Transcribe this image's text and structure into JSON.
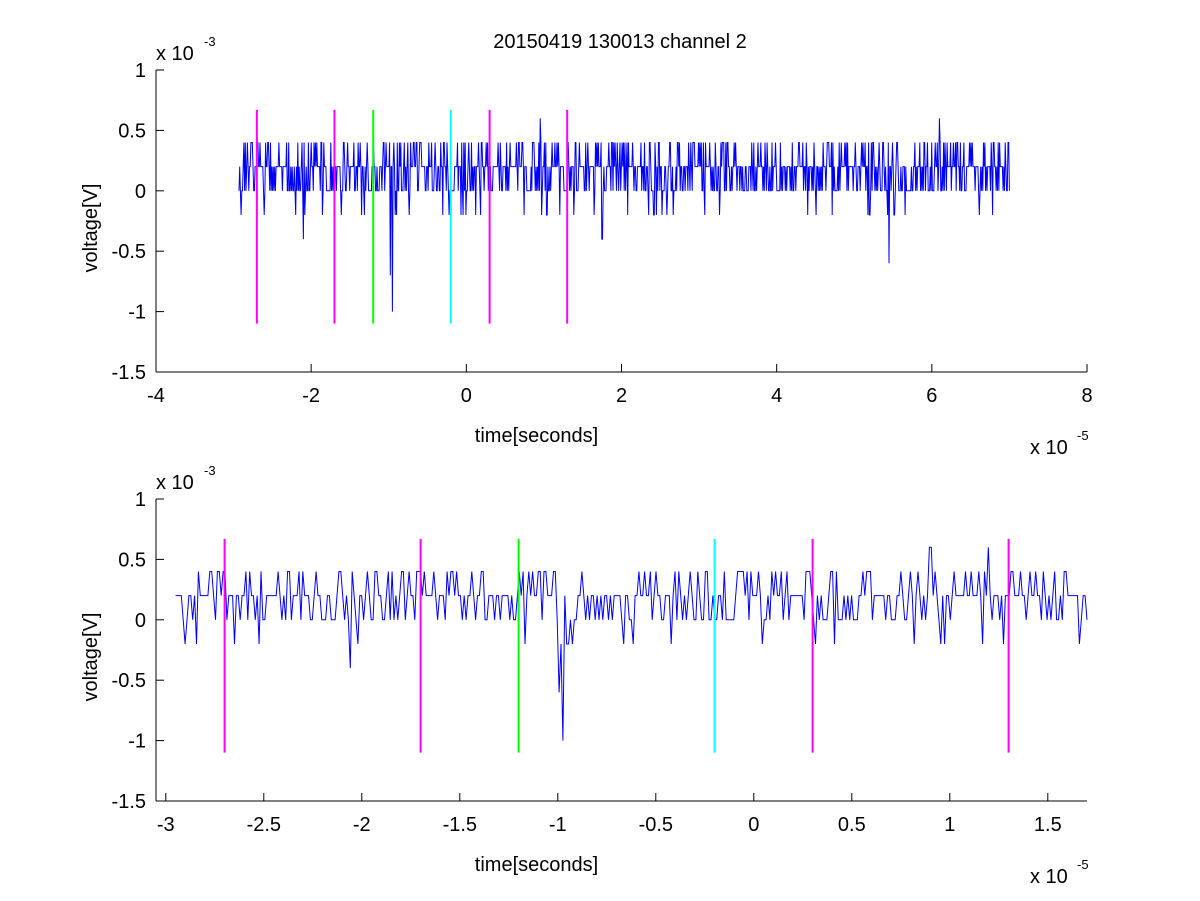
{
  "title": "20150419 130013 channel 2",
  "chart_data": [
    {
      "type": "line",
      "title": "20150419 130013 channel 2",
      "xlabel": "time[seconds]",
      "ylabel": "voltage[V]",
      "x_exponent_label": "x 10",
      "x_exponent": "-5",
      "y_exponent_label": "x 10",
      "y_exponent": "-3",
      "xlim": [
        -4,
        8
      ],
      "ylim": [
        -1.5,
        1
      ],
      "xticks": [
        "-4",
        "-2",
        "0",
        "2",
        "4",
        "6",
        "8"
      ],
      "yticks": [
        "-1.5",
        "-1",
        "-0.5",
        "0",
        "0.5",
        "1"
      ],
      "x_unit_scale": "1e-5",
      "y_unit_scale": "1e-3",
      "grid": false,
      "series": [
        {
          "color": "#0000ff",
          "x_range": [
            -2.93,
            7.0
          ],
          "baseline": 0.2,
          "noise_levels": [
            0,
            0.2,
            0.4
          ],
          "features": [
            {
              "x": -2.1,
              "y": -0.4
            },
            {
              "x": -0.95,
              "y": -1.0
            },
            {
              "x": -0.98,
              "y": -0.7
            },
            {
              "x": 0.95,
              "y": 0.6
            },
            {
              "x": 1.75,
              "y": -0.4
            },
            {
              "x": 5.45,
              "y": -0.6
            },
            {
              "x": 6.1,
              "y": 0.6
            }
          ]
        }
      ],
      "markers": [
        {
          "x": -2.7,
          "color": "#ff00ff",
          "y_range": [
            -1.1,
            0.67
          ]
        },
        {
          "x": -1.7,
          "color": "#ff00ff",
          "y_range": [
            -1.1,
            0.67
          ]
        },
        {
          "x": -1.2,
          "color": "#00ff00",
          "y_range": [
            -1.1,
            0.67
          ]
        },
        {
          "x": -0.2,
          "color": "#00ffff",
          "y_range": [
            -1.1,
            0.67
          ]
        },
        {
          "x": 0.3,
          "color": "#ff00ff",
          "y_range": [
            -1.1,
            0.67
          ]
        },
        {
          "x": 1.3,
          "color": "#ff00ff",
          "y_range": [
            -1.1,
            0.67
          ]
        }
      ]
    },
    {
      "type": "line",
      "xlabel": "time[seconds]",
      "ylabel": "voltage[V]",
      "x_exponent_label": "x 10",
      "x_exponent": "-5",
      "y_exponent_label": "x 10",
      "y_exponent": "-3",
      "xlim": [
        -3.05,
        1.7
      ],
      "ylim": [
        -1.5,
        1
      ],
      "xticks": [
        "-3",
        "-2.5",
        "-2",
        "-1.5",
        "-1",
        "-0.5",
        "0",
        "0.5",
        "1",
        "1.5"
      ],
      "yticks": [
        "-1.5",
        "-1",
        "-0.5",
        "0",
        "0.5",
        "1"
      ],
      "x_unit_scale": "1e-5",
      "y_unit_scale": "1e-3",
      "grid": false,
      "series": [
        {
          "color": "#0000ff",
          "x_range": [
            -2.95,
            1.7
          ],
          "baseline": 0.2,
          "noise_levels": [
            0,
            0.2,
            0.4
          ],
          "features": [
            {
              "x": -2.06,
              "y": -0.4
            },
            {
              "x": -0.97,
              "y": -1.0
            },
            {
              "x": -0.99,
              "y": -0.6
            },
            {
              "x": 0.9,
              "y": 0.6
            },
            {
              "x": 1.2,
              "y": 0.6
            },
            {
              "x": 1.27,
              "y": -0.2
            }
          ]
        }
      ],
      "markers": [
        {
          "x": -2.7,
          "color": "#ff00ff",
          "y_range": [
            -1.1,
            0.67
          ]
        },
        {
          "x": -1.7,
          "color": "#ff00ff",
          "y_range": [
            -1.1,
            0.67
          ]
        },
        {
          "x": -1.2,
          "color": "#00ff00",
          "y_range": [
            -1.1,
            0.67
          ]
        },
        {
          "x": -0.2,
          "color": "#00ffff",
          "y_range": [
            -1.1,
            0.67
          ]
        },
        {
          "x": 0.3,
          "color": "#ff00ff",
          "y_range": [
            -1.1,
            0.67
          ]
        },
        {
          "x": 1.3,
          "color": "#ff00ff",
          "y_range": [
            -1.1,
            0.67
          ]
        }
      ]
    }
  ]
}
